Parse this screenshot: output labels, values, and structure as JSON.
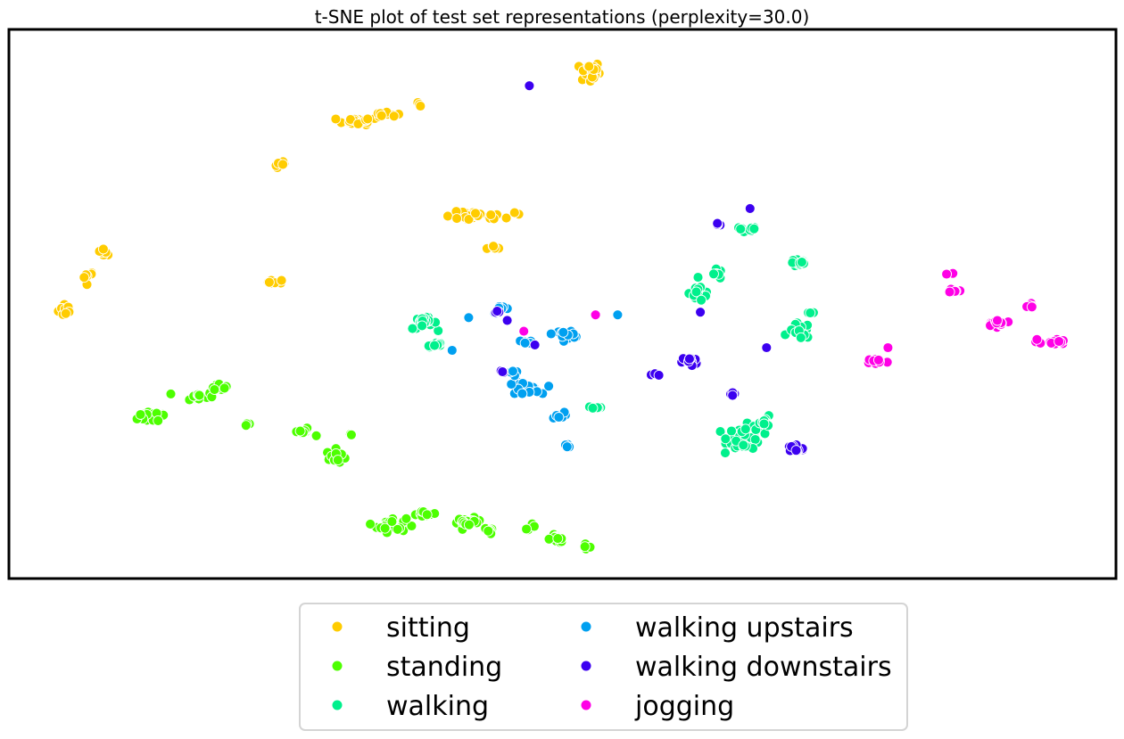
{
  "chart_data": {
    "type": "scatter",
    "title": "t-SNE plot of test set representations (perplexity=30.0)",
    "xlabel": "",
    "ylabel": "",
    "xlim": [
      0,
      100
    ],
    "ylim": [
      0,
      100
    ],
    "axes_ticks": false,
    "grid": false,
    "legend": {
      "position": "below",
      "columns": 2
    },
    "series": [
      {
        "name": "sitting",
        "color": "#FFCC00",
        "clusters": [
          {
            "cx": 5.0,
            "cy": 49.0,
            "sx": 0.6,
            "sy": 1.2,
            "n": 14
          },
          {
            "cx": 7.0,
            "cy": 55.0,
            "sx": 0.5,
            "sy": 1.0,
            "n": 6
          },
          {
            "cx": 8.5,
            "cy": 59.5,
            "sx": 0.5,
            "sy": 0.5,
            "n": 6
          },
          {
            "cx": 24.5,
            "cy": 75.5,
            "sx": 0.5,
            "sy": 0.7,
            "n": 8
          },
          {
            "cx": 24.0,
            "cy": 54.0,
            "sx": 0.6,
            "sy": 0.4,
            "n": 10
          },
          {
            "cx": 31.5,
            "cy": 83.5,
            "sx": 1.8,
            "sy": 0.6,
            "n": 18
          },
          {
            "cx": 34.0,
            "cy": 84.7,
            "sx": 1.2,
            "sy": 0.5,
            "n": 10
          },
          {
            "cx": 37.0,
            "cy": 86.5,
            "sx": 0.3,
            "sy": 0.3,
            "n": 3
          },
          {
            "cx": 42.0,
            "cy": 66.0,
            "sx": 2.5,
            "sy": 0.8,
            "n": 30
          },
          {
            "cx": 44.0,
            "cy": 60.5,
            "sx": 0.8,
            "sy": 0.4,
            "n": 5
          },
          {
            "cx": 46.0,
            "cy": 66.5,
            "sx": 0.4,
            "sy": 0.4,
            "n": 2
          },
          {
            "cx": 52.5,
            "cy": 92.5,
            "sx": 0.8,
            "sy": 1.8,
            "n": 28
          }
        ]
      },
      {
        "name": "standing",
        "color": "#4DFF00",
        "clusters": [
          {
            "cx": 13.0,
            "cy": 29.5,
            "sx": 1.3,
            "sy": 1.2,
            "n": 22
          },
          {
            "cx": 17.0,
            "cy": 33.0,
            "sx": 1.3,
            "sy": 0.8,
            "n": 15
          },
          {
            "cx": 18.8,
            "cy": 35.0,
            "sx": 0.6,
            "sy": 0.6,
            "n": 10
          },
          {
            "cx": 21.5,
            "cy": 28.0,
            "sx": 0.3,
            "sy": 0.2,
            "n": 3
          },
          {
            "cx": 26.5,
            "cy": 26.5,
            "sx": 0.8,
            "sy": 0.6,
            "n": 10
          },
          {
            "cx": 29.5,
            "cy": 22.0,
            "sx": 0.8,
            "sy": 1.2,
            "n": 15
          },
          {
            "cx": 30.8,
            "cy": 26.0,
            "sx": 0.3,
            "sy": 0.3,
            "n": 2
          },
          {
            "cx": 34.5,
            "cy": 9.5,
            "sx": 1.2,
            "sy": 1.2,
            "n": 30
          },
          {
            "cx": 37.5,
            "cy": 11.5,
            "sx": 1.0,
            "sy": 0.5,
            "n": 10
          },
          {
            "cx": 41.5,
            "cy": 10.0,
            "sx": 1.0,
            "sy": 0.7,
            "n": 22
          },
          {
            "cx": 43.5,
            "cy": 8.5,
            "sx": 0.5,
            "sy": 0.5,
            "n": 6
          },
          {
            "cx": 47.0,
            "cy": 9.2,
            "sx": 0.5,
            "sy": 0.4,
            "n": 5
          },
          {
            "cx": 49.5,
            "cy": 7.0,
            "sx": 0.8,
            "sy": 0.7,
            "n": 14
          },
          {
            "cx": 52.0,
            "cy": 5.5,
            "sx": 0.5,
            "sy": 0.4,
            "n": 8
          }
        ]
      },
      {
        "name": "walking",
        "color": "#00F08C",
        "clusters": [
          {
            "cx": 37.5,
            "cy": 46.5,
            "sx": 1.0,
            "sy": 1.0,
            "n": 20
          },
          {
            "cx": 38.5,
            "cy": 42.5,
            "sx": 0.7,
            "sy": 0.6,
            "n": 10
          },
          {
            "cx": 53.0,
            "cy": 31.0,
            "sx": 0.7,
            "sy": 0.3,
            "n": 6
          },
          {
            "cx": 62.5,
            "cy": 52.0,
            "sx": 0.9,
            "sy": 1.6,
            "n": 28
          },
          {
            "cx": 64.0,
            "cy": 55.5,
            "sx": 0.6,
            "sy": 0.8,
            "n": 8
          },
          {
            "cx": 66.5,
            "cy": 63.5,
            "sx": 1.0,
            "sy": 0.6,
            "n": 12
          },
          {
            "cx": 71.5,
            "cy": 57.5,
            "sx": 0.8,
            "sy": 0.6,
            "n": 14
          },
          {
            "cx": 71.5,
            "cy": 45.0,
            "sx": 0.9,
            "sy": 1.3,
            "n": 14
          },
          {
            "cx": 72.5,
            "cy": 48.5,
            "sx": 0.4,
            "sy": 0.6,
            "n": 3
          },
          {
            "cx": 66.5,
            "cy": 25.5,
            "sx": 1.4,
            "sy": 2.0,
            "n": 60
          },
          {
            "cx": 68.5,
            "cy": 28.5,
            "sx": 0.6,
            "sy": 0.8,
            "n": 10
          }
        ]
      },
      {
        "name": "walking upstairs",
        "color": "#00A0F0",
        "clusters": [
          {
            "cx": 44.5,
            "cy": 49.0,
            "sx": 0.7,
            "sy": 0.6,
            "n": 10
          },
          {
            "cx": 41.5,
            "cy": 47.5,
            "sx": 0.2,
            "sy": 0.2,
            "n": 1
          },
          {
            "cx": 40.0,
            "cy": 41.5,
            "sx": 0.2,
            "sy": 0.2,
            "n": 1
          },
          {
            "cx": 46.5,
            "cy": 43.0,
            "sx": 0.8,
            "sy": 0.6,
            "n": 5
          },
          {
            "cx": 50.5,
            "cy": 44.5,
            "sx": 1.2,
            "sy": 0.6,
            "n": 18
          },
          {
            "cx": 46.5,
            "cy": 34.5,
            "sx": 1.3,
            "sy": 1.0,
            "n": 30
          },
          {
            "cx": 45.5,
            "cy": 37.5,
            "sx": 0.5,
            "sy": 0.5,
            "n": 4
          },
          {
            "cx": 49.5,
            "cy": 29.5,
            "sx": 0.6,
            "sy": 0.6,
            "n": 10
          },
          {
            "cx": 50.5,
            "cy": 24.0,
            "sx": 0.4,
            "sy": 0.3,
            "n": 5
          },
          {
            "cx": 55.0,
            "cy": 48.0,
            "sx": 0.2,
            "sy": 0.2,
            "n": 1
          }
        ]
      },
      {
        "name": "walking downstairs",
        "color": "#3C00F0",
        "clusters": [
          {
            "cx": 47.0,
            "cy": 90.0,
            "sx": 0.1,
            "sy": 0.1,
            "n": 1
          },
          {
            "cx": 67.0,
            "cy": 67.5,
            "sx": 0.1,
            "sy": 0.1,
            "n": 1
          },
          {
            "cx": 64.0,
            "cy": 64.5,
            "sx": 0.4,
            "sy": 0.3,
            "n": 5
          },
          {
            "cx": 44.0,
            "cy": 48.5,
            "sx": 0.3,
            "sy": 0.2,
            "n": 3
          },
          {
            "cx": 45.0,
            "cy": 47.0,
            "sx": 0.2,
            "sy": 0.2,
            "n": 1
          },
          {
            "cx": 47.5,
            "cy": 42.5,
            "sx": 0.2,
            "sy": 0.2,
            "n": 1
          },
          {
            "cx": 44.5,
            "cy": 37.5,
            "sx": 0.3,
            "sy": 0.3,
            "n": 3
          },
          {
            "cx": 62.5,
            "cy": 48.5,
            "sx": 0.1,
            "sy": 0.1,
            "n": 1
          },
          {
            "cx": 58.5,
            "cy": 37.0,
            "sx": 0.4,
            "sy": 0.3,
            "n": 6
          },
          {
            "cx": 61.5,
            "cy": 39.5,
            "sx": 0.6,
            "sy": 0.8,
            "n": 12
          },
          {
            "cx": 68.5,
            "cy": 42.0,
            "sx": 0.1,
            "sy": 0.1,
            "n": 1
          },
          {
            "cx": 65.5,
            "cy": 33.5,
            "sx": 0.5,
            "sy": 0.5,
            "n": 6
          },
          {
            "cx": 71.0,
            "cy": 23.5,
            "sx": 0.8,
            "sy": 0.9,
            "n": 20
          }
        ]
      },
      {
        "name": "jogging",
        "color": "#FF00E6",
        "clusters": [
          {
            "cx": 46.5,
            "cy": 45.0,
            "sx": 0.1,
            "sy": 0.1,
            "n": 1
          },
          {
            "cx": 53.0,
            "cy": 48.0,
            "sx": 0.1,
            "sy": 0.1,
            "n": 1
          },
          {
            "cx": 78.5,
            "cy": 39.5,
            "sx": 0.8,
            "sy": 0.5,
            "n": 12
          },
          {
            "cx": 79.5,
            "cy": 42.0,
            "sx": 0.2,
            "sy": 0.2,
            "n": 1
          },
          {
            "cx": 85.5,
            "cy": 52.5,
            "sx": 0.6,
            "sy": 0.4,
            "n": 10
          },
          {
            "cx": 85.0,
            "cy": 55.5,
            "sx": 0.6,
            "sy": 0.2,
            "n": 2
          },
          {
            "cx": 89.5,
            "cy": 46.5,
            "sx": 1.1,
            "sy": 0.5,
            "n": 16
          },
          {
            "cx": 92.5,
            "cy": 49.5,
            "sx": 0.4,
            "sy": 0.6,
            "n": 5
          },
          {
            "cx": 94.5,
            "cy": 43.0,
            "sx": 1.0,
            "sy": 0.5,
            "n": 18
          },
          {
            "cx": 93.0,
            "cy": 43.5,
            "sx": 0.1,
            "sy": 0.1,
            "n": 1
          }
        ]
      }
    ]
  }
}
